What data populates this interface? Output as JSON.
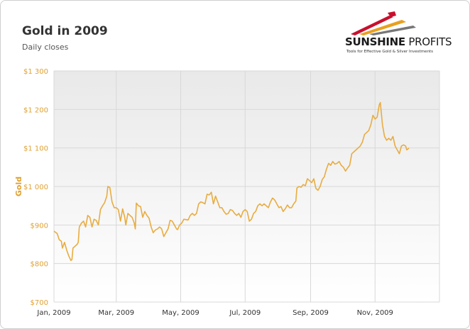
{
  "header": {
    "title": "Gold in 2009",
    "subtitle": "Daily closes"
  },
  "logo": {
    "name_bold": "SUNSHINE",
    "name_light": "PROFITS",
    "tagline": "Tools for Effective Gold & Silver Investments",
    "colors": {
      "red": "#c8102e",
      "gold": "#e8a020",
      "gray": "#777777"
    }
  },
  "colors": {
    "line": "#e8ac40",
    "grid": "#d8d8d8",
    "tick_y": "#e0a030",
    "tick_x": "#333333",
    "plot_bg_top": "#e9e9e9",
    "plot_bg_bottom": "#ffffff"
  },
  "chart_data": {
    "type": "line",
    "title": "Gold in 2009",
    "subtitle": "Daily closes",
    "ylabel": "Gold",
    "xlabel": "",
    "ylim": [
      700,
      1300
    ],
    "xlim": [
      0,
      365
    ],
    "yticks": [
      {
        "v": 700,
        "label": "$700"
      },
      {
        "v": 800,
        "label": "$800"
      },
      {
        "v": 900,
        "label": "$900"
      },
      {
        "v": 1000,
        "label": "$1 000"
      },
      {
        "v": 1100,
        "label": "$1 100"
      },
      {
        "v": 1200,
        "label": "$1 200"
      },
      {
        "v": 1300,
        "label": "$1 300"
      }
    ],
    "xticks": [
      {
        "v": 0,
        "label": "Jan, 2009"
      },
      {
        "v": 59,
        "label": "Mar, 2009"
      },
      {
        "v": 120,
        "label": "May, 2009"
      },
      {
        "v": 181,
        "label": "Jul, 2009"
      },
      {
        "v": 243,
        "label": "Sep, 2009"
      },
      {
        "v": 304,
        "label": "Nov, 2009"
      }
    ],
    "grid": true,
    "legend": "none",
    "series": [
      {
        "values": [
          [
            0,
            884
          ],
          [
            3,
            878
          ],
          [
            5,
            862
          ],
          [
            7,
            858
          ],
          [
            8,
            840
          ],
          [
            10,
            855
          ],
          [
            12,
            835
          ],
          [
            14,
            820
          ],
          [
            16,
            808
          ],
          [
            17,
            810
          ],
          [
            18,
            840
          ],
          [
            20,
            845
          ],
          [
            22,
            850
          ],
          [
            23,
            855
          ],
          [
            24,
            895
          ],
          [
            26,
            905
          ],
          [
            28,
            910
          ],
          [
            30,
            895
          ],
          [
            32,
            925
          ],
          [
            34,
            920
          ],
          [
            36,
            895
          ],
          [
            38,
            915
          ],
          [
            40,
            912
          ],
          [
            42,
            900
          ],
          [
            44,
            940
          ],
          [
            46,
            950
          ],
          [
            48,
            958
          ],
          [
            50,
            975
          ],
          [
            51,
            1000
          ],
          [
            53,
            997
          ],
          [
            55,
            960
          ],
          [
            57,
            945
          ],
          [
            59,
            945
          ],
          [
            61,
            940
          ],
          [
            63,
            910
          ],
          [
            65,
            942
          ],
          [
            67,
            920
          ],
          [
            68,
            900
          ],
          [
            70,
            930
          ],
          [
            72,
            925
          ],
          [
            74,
            920
          ],
          [
            76,
            905
          ],
          [
            77,
            890
          ],
          [
            78,
            957
          ],
          [
            80,
            950
          ],
          [
            82,
            948
          ],
          [
            84,
            920
          ],
          [
            86,
            935
          ],
          [
            88,
            925
          ],
          [
            90,
            918
          ],
          [
            92,
            895
          ],
          [
            94,
            880
          ],
          [
            96,
            887
          ],
          [
            98,
            890
          ],
          [
            100,
            895
          ],
          [
            102,
            890
          ],
          [
            104,
            870
          ],
          [
            106,
            880
          ],
          [
            108,
            890
          ],
          [
            110,
            912
          ],
          [
            112,
            910
          ],
          [
            114,
            900
          ],
          [
            116,
            890
          ],
          [
            117,
            888
          ],
          [
            119,
            900
          ],
          [
            121,
            905
          ],
          [
            123,
            915
          ],
          [
            125,
            914
          ],
          [
            127,
            913
          ],
          [
            129,
            925
          ],
          [
            131,
            930
          ],
          [
            133,
            925
          ],
          [
            135,
            930
          ],
          [
            137,
            955
          ],
          [
            139,
            960
          ],
          [
            141,
            958
          ],
          [
            143,
            955
          ],
          [
            145,
            980
          ],
          [
            147,
            978
          ],
          [
            149,
            985
          ],
          [
            151,
            955
          ],
          [
            153,
            975
          ],
          [
            155,
            960
          ],
          [
            157,
            945
          ],
          [
            159,
            945
          ],
          [
            161,
            935
          ],
          [
            163,
            928
          ],
          [
            165,
            930
          ],
          [
            167,
            940
          ],
          [
            169,
            938
          ],
          [
            171,
            930
          ],
          [
            173,
            925
          ],
          [
            175,
            930
          ],
          [
            177,
            920
          ],
          [
            179,
            935
          ],
          [
            181,
            940
          ],
          [
            183,
            935
          ],
          [
            185,
            910
          ],
          [
            187,
            915
          ],
          [
            189,
            930
          ],
          [
            191,
            935
          ],
          [
            193,
            950
          ],
          [
            195,
            955
          ],
          [
            197,
            950
          ],
          [
            199,
            955
          ],
          [
            201,
            950
          ],
          [
            203,
            945
          ],
          [
            205,
            960
          ],
          [
            207,
            970
          ],
          [
            209,
            965
          ],
          [
            211,
            955
          ],
          [
            213,
            945
          ],
          [
            215,
            948
          ],
          [
            217,
            935
          ],
          [
            219,
            942
          ],
          [
            221,
            952
          ],
          [
            223,
            945
          ],
          [
            225,
            945
          ],
          [
            227,
            955
          ],
          [
            229,
            962
          ],
          [
            230,
            996
          ],
          [
            232,
            1000
          ],
          [
            234,
            998
          ],
          [
            236,
            1005
          ],
          [
            238,
            1002
          ],
          [
            240,
            1020
          ],
          [
            242,
            1015
          ],
          [
            244,
            1010
          ],
          [
            246,
            1020
          ],
          [
            248,
            995
          ],
          [
            250,
            990
          ],
          [
            252,
            1000
          ],
          [
            254,
            1018
          ],
          [
            256,
            1025
          ],
          [
            258,
            1045
          ],
          [
            260,
            1060
          ],
          [
            262,
            1055
          ],
          [
            264,
            1065
          ],
          [
            266,
            1058
          ],
          [
            268,
            1060
          ],
          [
            270,
            1065
          ],
          [
            272,
            1055
          ],
          [
            274,
            1050
          ],
          [
            276,
            1040
          ],
          [
            278,
            1048
          ],
          [
            280,
            1055
          ],
          [
            282,
            1085
          ],
          [
            284,
            1090
          ],
          [
            286,
            1095
          ],
          [
            288,
            1100
          ],
          [
            290,
            1105
          ],
          [
            292,
            1115
          ],
          [
            294,
            1135
          ],
          [
            296,
            1140
          ],
          [
            298,
            1145
          ],
          [
            300,
            1160
          ],
          [
            302,
            1185
          ],
          [
            304,
            1175
          ],
          [
            306,
            1180
          ],
          [
            308,
            1212
          ],
          [
            309,
            1218
          ],
          [
            311,
            1160
          ],
          [
            313,
            1130
          ],
          [
            315,
            1120
          ],
          [
            317,
            1125
          ],
          [
            319,
            1120
          ],
          [
            321,
            1130
          ],
          [
            323,
            1105
          ],
          [
            325,
            1095
          ],
          [
            327,
            1085
          ],
          [
            329,
            1105
          ],
          [
            331,
            1108
          ],
          [
            333,
            1105
          ],
          [
            334,
            1095
          ],
          [
            335,
            1097
          ],
          [
            336,
            1100
          ]
        ]
      }
    ]
  }
}
